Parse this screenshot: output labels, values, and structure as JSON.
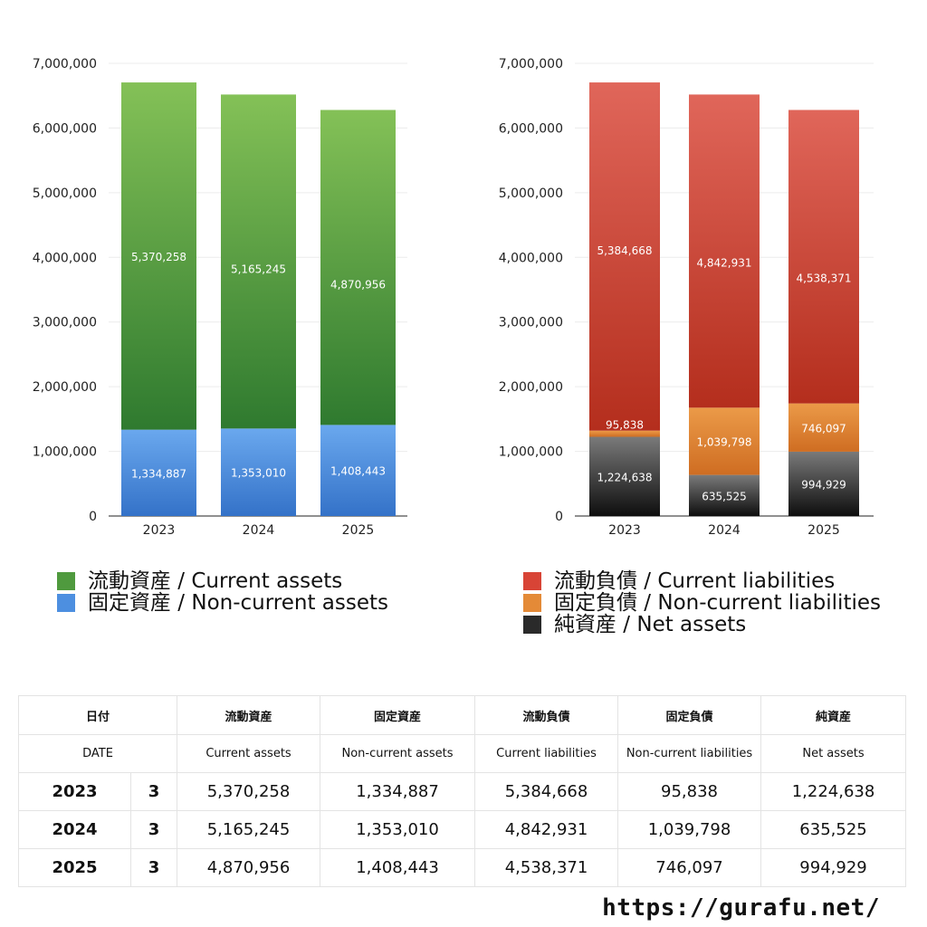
{
  "years": [
    "2023",
    "2024",
    "2025"
  ],
  "chart_data": [
    {
      "type": "bar",
      "stacked": true,
      "categories": [
        "2023",
        "2024",
        "2025"
      ],
      "ylim": [
        0,
        7000000
      ],
      "ticks": [
        "0",
        "1,000,000",
        "2,000,000",
        "3,000,000",
        "4,000,000",
        "5,000,000",
        "6,000,000",
        "7,000,000"
      ],
      "tick_values": [
        0,
        1000000,
        2000000,
        3000000,
        4000000,
        5000000,
        6000000,
        7000000
      ],
      "series": [
        {
          "name": "固定資産 / Non-current assets",
          "values": [
            1334887,
            1353010,
            1408443
          ],
          "labels": [
            "1,334,887",
            "1,353,010",
            "1,408,443"
          ],
          "color_top": "#6aa8ee",
          "color_bottom": "#3472c8"
        },
        {
          "name": "流動資産 / Current assets",
          "values": [
            5370258,
            5165245,
            4870956
          ],
          "labels": [
            "5,370,258",
            "5,165,245",
            "4,870,956"
          ],
          "color_top": "#84c157",
          "color_bottom": "#2f7a2f"
        }
      ],
      "legend": [
        "流動資産 / Current assets",
        "固定資産 / Non-current assets"
      ],
      "legend_colors": [
        "#4f9a3e",
        "#4d8fe0"
      ]
    },
    {
      "type": "bar",
      "stacked": true,
      "categories": [
        "2023",
        "2024",
        "2025"
      ],
      "ylim": [
        0,
        7000000
      ],
      "ticks": [
        "0",
        "1,000,000",
        "2,000,000",
        "3,000,000",
        "4,000,000",
        "5,000,000",
        "6,000,000",
        "7,000,000"
      ],
      "tick_values": [
        0,
        1000000,
        2000000,
        3000000,
        4000000,
        5000000,
        6000000,
        7000000
      ],
      "series": [
        {
          "name": "純資産 / Net assets",
          "values": [
            1224638,
            635525,
            994929
          ],
          "labels": [
            "1,224,638",
            "635,525",
            "994,929"
          ],
          "color_top": "#7a7a7a",
          "color_bottom": "#0e0e0e"
        },
        {
          "name": "固定負債 / Non-current liabilities",
          "values": [
            95838,
            1039798,
            746097
          ],
          "labels": [
            "95,838",
            "1,039,798",
            "746,097"
          ],
          "color_top": "#eb9a48",
          "color_bottom": "#cf6d22"
        },
        {
          "name": "流動負債 / Current liabilities",
          "values": [
            5384668,
            4842931,
            4538371
          ],
          "labels": [
            "5,384,668",
            "4,842,931",
            "4,538,371"
          ],
          "color_top": "#e0665a",
          "color_bottom": "#b42e1d"
        }
      ],
      "legend": [
        "流動負債 / Current liabilities",
        "固定負債 / Non-current liabilities",
        "純資産 / Net assets"
      ],
      "legend_colors": [
        "#d84436",
        "#e48a37",
        "#2a2a2a"
      ]
    }
  ],
  "table": {
    "header_ja": [
      "日付",
      "流動資産",
      "固定資産",
      "流動負債",
      "固定負債",
      "純資産"
    ],
    "header_en": [
      "DATE",
      "Current assets",
      "Non-current assets",
      "Current liabilities",
      "Non-current liabilities",
      "Net assets"
    ],
    "rows": [
      {
        "year": "2023",
        "month": "3",
        "cells": [
          "5,370,258",
          "1,334,887",
          "5,384,668",
          "95,838",
          "1,224,638"
        ]
      },
      {
        "year": "2024",
        "month": "3",
        "cells": [
          "5,165,245",
          "1,353,010",
          "4,842,931",
          "1,039,798",
          "635,525"
        ]
      },
      {
        "year": "2025",
        "month": "3",
        "cells": [
          "4,870,956",
          "1,408,443",
          "4,538,371",
          "746,097",
          "994,929"
        ]
      }
    ]
  },
  "footer": {
    "url": "https://gurafu.net/"
  }
}
